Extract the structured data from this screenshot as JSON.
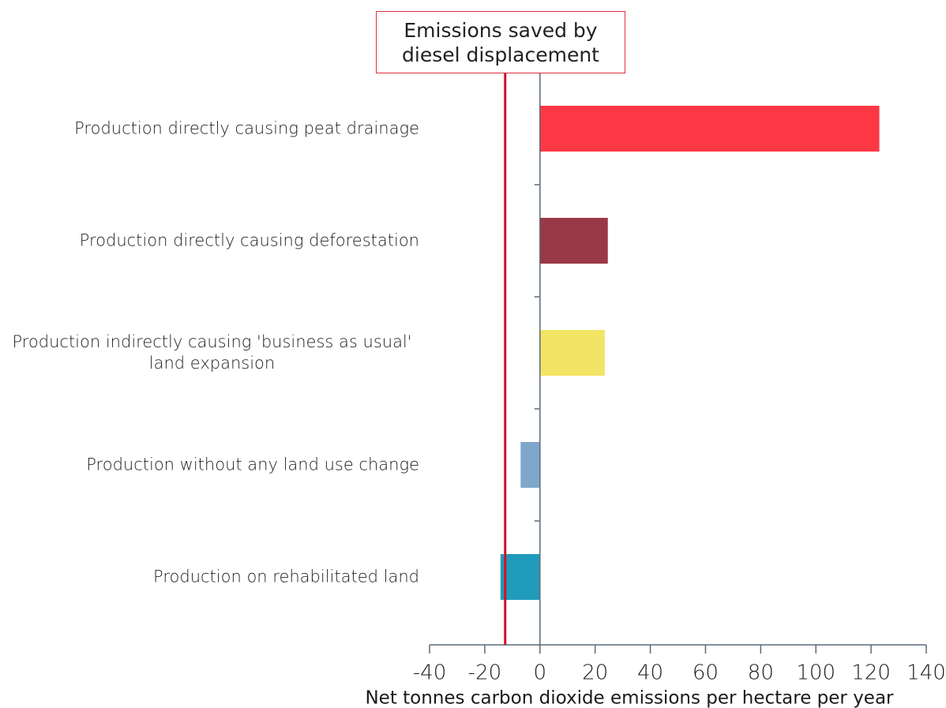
{
  "chart_data": {
    "type": "bar",
    "orientation": "horizontal",
    "categories": [
      "Production directly causing peat drainage",
      "Production directly causing deforestation",
      "Production indirectly causing 'business as usual' land expansion",
      "Production without any land use change",
      "Production on rehabilitated land"
    ],
    "values": [
      123,
      24.6,
      23.5,
      -7,
      -14.3
    ],
    "colors": [
      "#fe3745",
      "#9b3848",
      "#f2e465",
      "#7fa7cb",
      "#219bbb"
    ],
    "xlim": [
      -40,
      140
    ],
    "xticks": [
      -40,
      -20,
      0,
      20,
      40,
      60,
      80,
      100,
      120,
      140
    ],
    "xlabel": "Net tonnes carbon dioxide emissions per hectare per year",
    "annotation": {
      "text": "Emissions saved by diesel displacement",
      "value": -12.6,
      "color": "#d0102a"
    }
  }
}
